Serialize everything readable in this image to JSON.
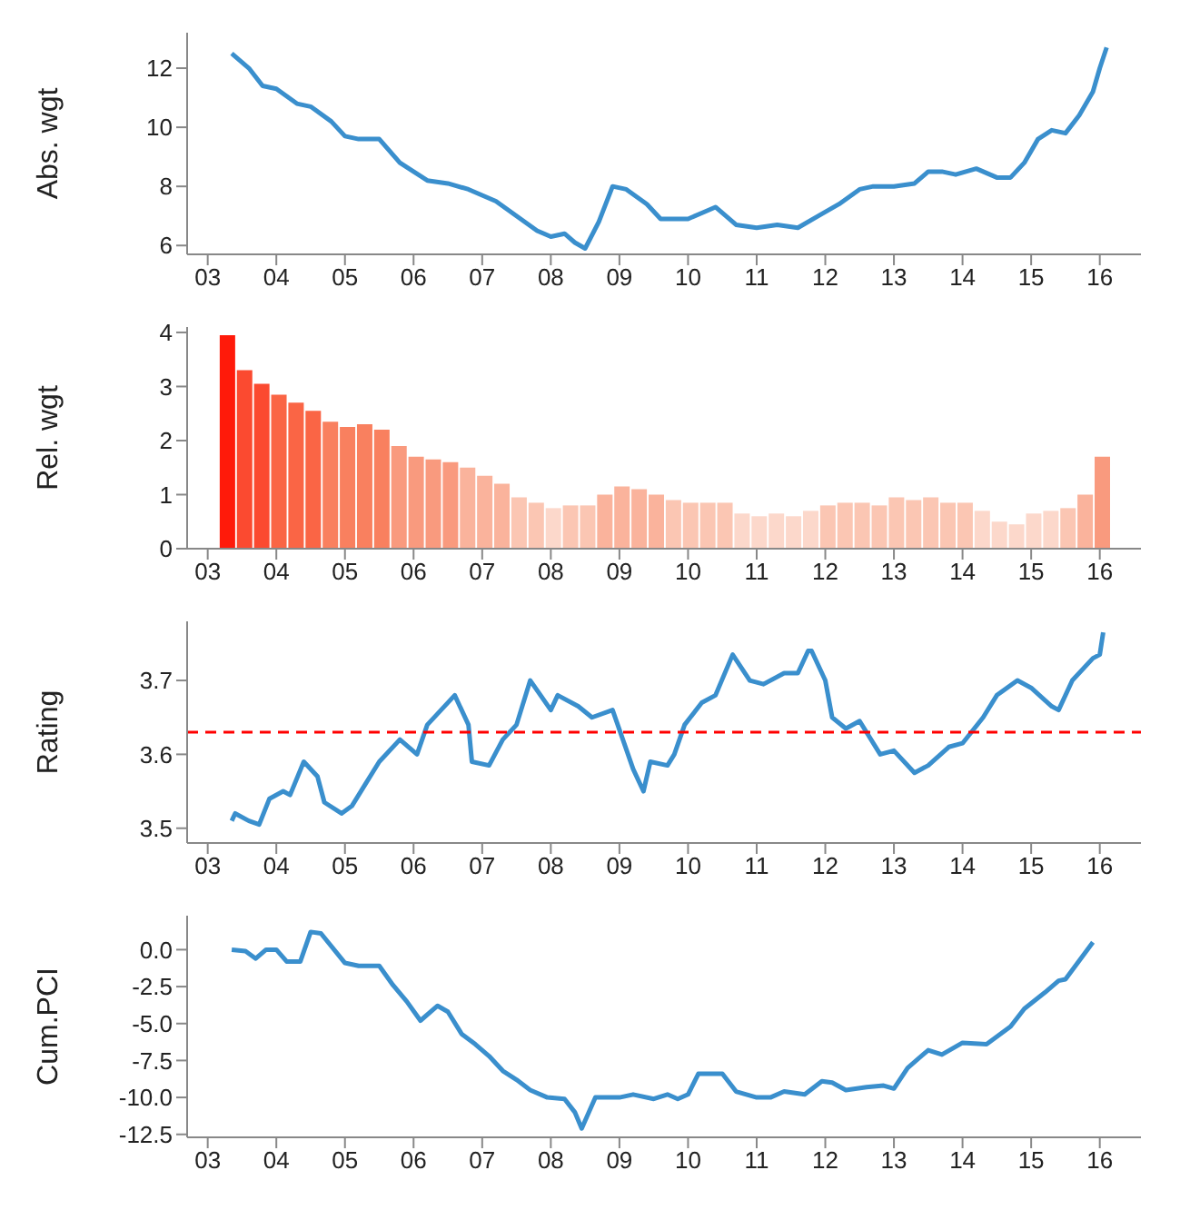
{
  "chart_data": [
    {
      "type": "line",
      "ylabel": "Abs. wgt",
      "color": "#3a8fcd",
      "xlim": [
        2002.7,
        2016.6
      ],
      "xticks": [
        {
          "value": 2003,
          "label": "03"
        },
        {
          "value": 2004,
          "label": "04"
        },
        {
          "value": 2005,
          "label": "05"
        },
        {
          "value": 2006,
          "label": "06"
        },
        {
          "value": 2007,
          "label": "07"
        },
        {
          "value": 2008,
          "label": "08"
        },
        {
          "value": 2009,
          "label": "09"
        },
        {
          "value": 2010,
          "label": "10"
        },
        {
          "value": 2011,
          "label": "11"
        },
        {
          "value": 2012,
          "label": "12"
        },
        {
          "value": 2013,
          "label": "13"
        },
        {
          "value": 2014,
          "label": "14"
        },
        {
          "value": 2015,
          "label": "15"
        },
        {
          "value": 2016,
          "label": "16"
        }
      ],
      "ylim": [
        5.7,
        13.2
      ],
      "yticks": [
        6,
        8,
        10,
        12
      ],
      "x": [
        2003.35,
        2003.6,
        2003.8,
        2004.0,
        2004.3,
        2004.5,
        2004.8,
        2005.0,
        2005.2,
        2005.5,
        2005.8,
        2006.0,
        2006.2,
        2006.5,
        2006.8,
        2007.0,
        2007.2,
        2007.5,
        2007.8,
        2008.0,
        2008.2,
        2008.35,
        2008.5,
        2008.7,
        2008.9,
        2009.1,
        2009.4,
        2009.6,
        2010.0,
        2010.2,
        2010.4,
        2010.7,
        2011.0,
        2011.3,
        2011.6,
        2011.9,
        2012.2,
        2012.5,
        2012.7,
        2013.0,
        2013.3,
        2013.5,
        2013.7,
        2013.9,
        2014.2,
        2014.5,
        2014.7,
        2014.9,
        2015.1,
        2015.3,
        2015.5,
        2015.7,
        2015.9,
        2016.0,
        2016.1
      ],
      "values": [
        12.5,
        12.0,
        11.4,
        11.3,
        10.8,
        10.7,
        10.2,
        9.7,
        9.6,
        9.6,
        8.8,
        8.5,
        8.2,
        8.1,
        7.9,
        7.7,
        7.5,
        7.0,
        6.5,
        6.3,
        6.4,
        6.1,
        5.9,
        6.8,
        8.0,
        7.9,
        7.4,
        6.9,
        6.9,
        7.1,
        7.3,
        6.7,
        6.6,
        6.7,
        6.6,
        7.0,
        7.4,
        7.9,
        8.0,
        8.0,
        8.1,
        8.5,
        8.5,
        8.4,
        8.6,
        8.3,
        8.3,
        8.8,
        9.6,
        9.9,
        9.8,
        10.4,
        11.2,
        12.0,
        12.7
      ]
    },
    {
      "type": "bar",
      "ylabel": "Rel. wgt",
      "xlim": [
        2002.7,
        2016.6
      ],
      "xticks": [
        {
          "value": 2003,
          "label": "03"
        },
        {
          "value": 2004,
          "label": "04"
        },
        {
          "value": 2005,
          "label": "05"
        },
        {
          "value": 2006,
          "label": "06"
        },
        {
          "value": 2007,
          "label": "07"
        },
        {
          "value": 2008,
          "label": "08"
        },
        {
          "value": 2009,
          "label": "09"
        },
        {
          "value": 2010,
          "label": "10"
        },
        {
          "value": 2011,
          "label": "11"
        },
        {
          "value": 2012,
          "label": "12"
        },
        {
          "value": 2013,
          "label": "13"
        },
        {
          "value": 2014,
          "label": "14"
        },
        {
          "value": 2015,
          "label": "15"
        },
        {
          "value": 2016,
          "label": "16"
        }
      ],
      "ylim": [
        0,
        4.1
      ],
      "yticks": [
        0,
        1,
        2,
        3,
        4
      ],
      "x": [
        2003.3,
        2003.55,
        2003.8,
        2004.05,
        2004.3,
        2004.55,
        2004.8,
        2005.05,
        2005.3,
        2005.55,
        2005.8,
        2006.05,
        2006.3,
        2006.55,
        2006.8,
        2007.05,
        2007.3,
        2007.55,
        2007.8,
        2008.05,
        2008.3,
        2008.55,
        2008.8,
        2009.05,
        2009.3,
        2009.55,
        2009.8,
        2010.05,
        2010.3,
        2010.55,
        2010.8,
        2011.05,
        2011.3,
        2011.55,
        2011.8,
        2012.05,
        2012.3,
        2012.55,
        2012.8,
        2013.05,
        2013.3,
        2013.55,
        2013.8,
        2014.05,
        2014.3,
        2014.55,
        2014.8,
        2015.05,
        2015.3,
        2015.55,
        2015.8,
        2016.05
      ],
      "values": [
        3.95,
        3.3,
        3.05,
        2.85,
        2.7,
        2.55,
        2.35,
        2.25,
        2.3,
        2.2,
        1.9,
        1.7,
        1.65,
        1.6,
        1.5,
        1.35,
        1.2,
        0.95,
        0.85,
        0.75,
        0.8,
        0.8,
        1.0,
        1.15,
        1.1,
        1.0,
        0.9,
        0.85,
        0.85,
        0.85,
        0.65,
        0.6,
        0.65,
        0.6,
        0.7,
        0.8,
        0.85,
        0.85,
        0.8,
        0.95,
        0.9,
        0.95,
        0.85,
        0.85,
        0.7,
        0.5,
        0.45,
        0.65,
        0.7,
        0.75,
        1.0,
        1.7
      ],
      "colors": [
        "#ff1a0a",
        "#fb4a30",
        "#fb4a30",
        "#fa6545",
        "#fa6545",
        "#fa6545",
        "#f9805f",
        "#f9805f",
        "#f9805f",
        "#f9805f",
        "#f99a7e",
        "#f99a7e",
        "#f99a7e",
        "#f99a7e",
        "#fab39c",
        "#fab39c",
        "#fab39c",
        "#fbc6b3",
        "#fbc6b3",
        "#fcd8cb",
        "#fbc6b3",
        "#fbc6b3",
        "#fab39c",
        "#fab39c",
        "#fab39c",
        "#fab39c",
        "#fbc6b3",
        "#fbc6b3",
        "#fbc6b3",
        "#fbc6b3",
        "#fcd8cb",
        "#fcd8cb",
        "#fcd8cb",
        "#fcd8cb",
        "#fcd8cb",
        "#fbc6b3",
        "#fbc6b3",
        "#fbc6b3",
        "#fbc6b3",
        "#fbc6b3",
        "#fbc6b3",
        "#fbc6b3",
        "#fbc6b3",
        "#fbc6b3",
        "#fcd8cb",
        "#fcd8cb",
        "#fcd8cb",
        "#fcd8cb",
        "#fcd8cb",
        "#fbc6b3",
        "#fab39c",
        "#f99a7e"
      ]
    },
    {
      "type": "line",
      "ylabel": "Rating",
      "color": "#3a8fcd",
      "xlim": [
        2002.7,
        2016.6
      ],
      "xticks": [
        {
          "value": 2003,
          "label": "03"
        },
        {
          "value": 2004,
          "label": "04"
        },
        {
          "value": 2005,
          "label": "05"
        },
        {
          "value": 2006,
          "label": "06"
        },
        {
          "value": 2007,
          "label": "07"
        },
        {
          "value": 2008,
          "label": "08"
        },
        {
          "value": 2009,
          "label": "09"
        },
        {
          "value": 2010,
          "label": "10"
        },
        {
          "value": 2011,
          "label": "11"
        },
        {
          "value": 2012,
          "label": "12"
        },
        {
          "value": 2013,
          "label": "13"
        },
        {
          "value": 2014,
          "label": "14"
        },
        {
          "value": 2015,
          "label": "15"
        },
        {
          "value": 2016,
          "label": "16"
        }
      ],
      "ylim": [
        3.48,
        3.78
      ],
      "yticks": [
        3.5,
        3.6,
        3.7
      ],
      "ref_lines": [
        {
          "axis": "y",
          "value": 3.63,
          "color": "#ff0000",
          "line_style": "dashed"
        }
      ],
      "x": [
        2003.35,
        2003.4,
        2003.6,
        2003.75,
        2003.9,
        2004.1,
        2004.2,
        2004.4,
        2004.6,
        2004.7,
        2004.95,
        2005.1,
        2005.3,
        2005.5,
        2005.8,
        2006.05,
        2006.2,
        2006.6,
        2006.8,
        2006.85,
        2007.1,
        2007.3,
        2007.5,
        2007.7,
        2008.0,
        2008.1,
        2008.4,
        2008.6,
        2008.9,
        2009.05,
        2009.2,
        2009.35,
        2009.45,
        2009.7,
        2009.8,
        2009.95,
        2010.2,
        2010.4,
        2010.65,
        2010.9,
        2011.1,
        2011.4,
        2011.6,
        2011.75,
        2011.8,
        2012.0,
        2012.1,
        2012.3,
        2012.5,
        2012.8,
        2013.0,
        2013.3,
        2013.5,
        2013.8,
        2014.0,
        2014.3,
        2014.5,
        2014.8,
        2015.0,
        2015.3,
        2015.4,
        2015.6,
        2015.9,
        2016.0,
        2016.05
      ],
      "values": [
        3.51,
        3.52,
        3.51,
        3.505,
        3.54,
        3.55,
        3.545,
        3.59,
        3.57,
        3.535,
        3.52,
        3.53,
        3.56,
        3.59,
        3.62,
        3.6,
        3.64,
        3.68,
        3.64,
        3.59,
        3.585,
        3.62,
        3.64,
        3.7,
        3.66,
        3.68,
        3.665,
        3.65,
        3.66,
        3.62,
        3.58,
        3.55,
        3.59,
        3.585,
        3.6,
        3.64,
        3.67,
        3.68,
        3.735,
        3.7,
        3.695,
        3.71,
        3.71,
        3.74,
        3.74,
        3.7,
        3.65,
        3.635,
        3.645,
        3.6,
        3.605,
        3.575,
        3.585,
        3.61,
        3.615,
        3.65,
        3.68,
        3.7,
        3.69,
        3.665,
        3.66,
        3.7,
        3.73,
        3.735,
        3.765
      ]
    },
    {
      "type": "line",
      "ylabel": "Cum.PCI",
      "color": "#3a8fcd",
      "xlim": [
        2002.7,
        2016.6
      ],
      "xticks": [
        {
          "value": 2003,
          "label": "03"
        },
        {
          "value": 2004,
          "label": "04"
        },
        {
          "value": 2005,
          "label": "05"
        },
        {
          "value": 2006,
          "label": "06"
        },
        {
          "value": 2007,
          "label": "07"
        },
        {
          "value": 2008,
          "label": "08"
        },
        {
          "value": 2009,
          "label": "09"
        },
        {
          "value": 2010,
          "label": "10"
        },
        {
          "value": 2011,
          "label": "11"
        },
        {
          "value": 2012,
          "label": "12"
        },
        {
          "value": 2013,
          "label": "13"
        },
        {
          "value": 2014,
          "label": "14"
        },
        {
          "value": 2015,
          "label": "15"
        },
        {
          "value": 2016,
          "label": "16"
        }
      ],
      "ylim": [
        -12.7,
        2.3
      ],
      "yticks": [
        {
          "value": 0,
          "label": "0.0"
        },
        {
          "value": -2.5,
          "label": "-2.5"
        },
        {
          "value": -5,
          "label": "-5.0"
        },
        {
          "value": -7.5,
          "label": "-7.5"
        },
        {
          "value": -10,
          "label": "-10.0"
        },
        {
          "value": -12.5,
          "label": "-12.5"
        }
      ],
      "x": [
        2003.35,
        2003.55,
        2003.7,
        2003.85,
        2004.0,
        2004.15,
        2004.35,
        2004.5,
        2004.65,
        2005.0,
        2005.2,
        2005.5,
        2005.7,
        2005.9,
        2006.1,
        2006.35,
        2006.5,
        2006.7,
        2006.9,
        2007.1,
        2007.3,
        2007.5,
        2007.7,
        2007.95,
        2008.2,
        2008.35,
        2008.45,
        2008.65,
        2009.0,
        2009.2,
        2009.5,
        2009.7,
        2009.85,
        2010.0,
        2010.15,
        2010.5,
        2010.7,
        2011.0,
        2011.2,
        2011.4,
        2011.7,
        2011.95,
        2012.1,
        2012.3,
        2012.6,
        2012.85,
        2013.0,
        2013.2,
        2013.5,
        2013.7,
        2014.0,
        2014.35,
        2014.7,
        2014.9,
        2015.2,
        2015.4,
        2015.5,
        2015.9
      ],
      "values": [
        0.0,
        -0.1,
        -0.6,
        0.0,
        0.0,
        -0.8,
        -0.8,
        1.2,
        1.1,
        -0.9,
        -1.1,
        -1.1,
        -2.4,
        -3.5,
        -4.8,
        -3.8,
        -4.2,
        -5.7,
        -6.4,
        -7.2,
        -8.2,
        -8.8,
        -9.5,
        -10.0,
        -10.1,
        -11.0,
        -12.1,
        -10.0,
        -10.0,
        -9.8,
        -10.1,
        -9.8,
        -10.1,
        -9.8,
        -8.4,
        -8.4,
        -9.6,
        -10.0,
        -10.0,
        -9.6,
        -9.8,
        -8.9,
        -9.0,
        -9.5,
        -9.3,
        -9.2,
        -9.4,
        -8.0,
        -6.8,
        -7.1,
        -6.3,
        -6.4,
        -5.2,
        -4.0,
        -2.9,
        -2.1,
        -2.0,
        0.5
      ]
    }
  ]
}
